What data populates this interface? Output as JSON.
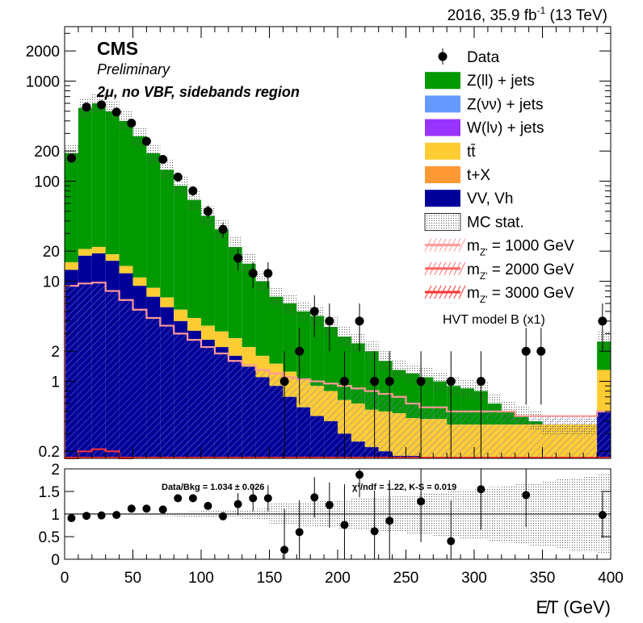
{
  "header": {
    "year": "2016, 35.9 fb",
    "lumi_exp": "-1",
    "energy": "(13 TeV)"
  },
  "labels": {
    "experiment": "CMS",
    "status": "Preliminary",
    "region": "2μ, no VBF, sidebands region",
    "model": "HVT model B (x1)",
    "ratio_stats": "Data/Bkg = 1.034 ± 0.026",
    "ratio_chi2": "χ²/ndf = 1.22,   K-S = 0.019",
    "xlabel": "E̸T (GeV)"
  },
  "legend": [
    {
      "label": "Data",
      "style": "marker"
    },
    {
      "label": "Z(ll) + jets",
      "style": "fill",
      "color": "#009900"
    },
    {
      "label": "Z(νν) + jets",
      "style": "fill",
      "color": "#6699ff"
    },
    {
      "label": "W(lν) + jets",
      "style": "fill",
      "color": "#9933ff"
    },
    {
      "label": "tt̄",
      "style": "fill",
      "color": "#ffcc33"
    },
    {
      "label": "t+X",
      "style": "fill",
      "color": "#ff9933"
    },
    {
      "label": "VV, Vh",
      "style": "fill",
      "color": "#000099"
    },
    {
      "label": "MC stat.",
      "style": "hatch"
    },
    {
      "label": "m",
      "sub": "Z'",
      "rest": " = 1000 GeV",
      "style": "line",
      "color": "#ff9999"
    },
    {
      "label": "m",
      "sub": "Z'",
      "rest": " = 2000 GeV",
      "style": "line",
      "color": "#ff6666"
    },
    {
      "label": "m",
      "sub": "Z'",
      "rest": " = 3000 GeV",
      "style": "line",
      "color": "#ff3333"
    }
  ],
  "chart_data": {
    "type": "bar",
    "x_axis": {
      "label": "E̸T (GeV)",
      "range": [
        0,
        400
      ],
      "ticks": [
        "0",
        "50",
        "100",
        "150",
        "200",
        "250",
        "300",
        "350",
        "400"
      ]
    },
    "y_axis": {
      "scale": "log",
      "range": [
        0.17,
        3500
      ],
      "ticks": [
        "0.2",
        "1",
        "2",
        "10",
        "20",
        "100",
        "200",
        "1000",
        "2000"
      ]
    },
    "ratio_axis": {
      "range": [
        0,
        2
      ],
      "ticks": [
        "0",
        "0.5",
        "1",
        "1.5",
        "2"
      ],
      "reference": 1
    },
    "bin_width": 10,
    "data_points": [
      {
        "x": 5,
        "y": 170,
        "ratio": 0.91
      },
      {
        "x": 16,
        "y": 550,
        "ratio": 0.96
      },
      {
        "x": 27,
        "y": 580,
        "ratio": 0.97
      },
      {
        "x": 38,
        "y": 490,
        "ratio": 0.98
      },
      {
        "x": 49,
        "y": 380,
        "ratio": 1.12
      },
      {
        "x": 60,
        "y": 250,
        "ratio": 1.12
      },
      {
        "x": 72,
        "y": 165,
        "ratio": 1.1
      },
      {
        "x": 83,
        "y": 110,
        "ratio": 1.35
      },
      {
        "x": 94,
        "y": 80,
        "ratio": 1.35
      },
      {
        "x": 105,
        "y": 50,
        "ratio": 1.18
      },
      {
        "x": 116,
        "y": 33,
        "ratio": 0.95
      },
      {
        "x": 127,
        "y": 17,
        "ratio": 1.22
      },
      {
        "x": 138,
        "y": 12,
        "ratio": 1.35
      },
      {
        "x": 149,
        "y": 12,
        "ratio": 1.35
      },
      {
        "x": 161,
        "y": 1,
        "ratio": 0.21
      },
      {
        "x": 172,
        "y": 2,
        "ratio": 0.6
      },
      {
        "x": 183,
        "y": 5,
        "ratio": 1.37
      },
      {
        "x": 194,
        "y": 4,
        "ratio": 1.2
      },
      {
        "x": 205,
        "y": 1,
        "ratio": 0.76
      },
      {
        "x": 216,
        "y": 4,
        "ratio": 1.87
      },
      {
        "x": 227,
        "y": 1,
        "ratio": 0.62
      },
      {
        "x": 238,
        "y": 1,
        "ratio": 0.85
      },
      {
        "x": 261,
        "y": 1,
        "ratio": 1.28
      },
      {
        "x": 283,
        "y": 1,
        "ratio": 0.4
      },
      {
        "x": 305,
        "y": 1,
        "ratio": 1.55
      },
      {
        "x": 338,
        "y": 2,
        "ratio": 1.42
      },
      {
        "x": 349,
        "y": 2,
        "ratio": null
      },
      {
        "x": 394,
        "y": 4,
        "ratio": 0.98
      }
    ],
    "background_stack": {
      "bin_edges": [
        0,
        10,
        20,
        30,
        40,
        50,
        60,
        70,
        80,
        90,
        100,
        110,
        120,
        130,
        140,
        150,
        160,
        170,
        180,
        190,
        200,
        210,
        220,
        230,
        240,
        250,
        260,
        270,
        280,
        290,
        300,
        310,
        320,
        330,
        340,
        350,
        360,
        370,
        380,
        390,
        400
      ],
      "vv_vh": [
        13,
        18,
        19,
        16,
        12,
        9,
        7,
        5.5,
        4,
        3.2,
        2.6,
        2.2,
        1.8,
        1.4,
        1.1,
        0.9,
        0.7,
        0.55,
        0.45,
        0.4,
        0.3,
        0.25,
        0.22,
        0.2,
        0.18,
        0.18,
        0.17,
        0.17,
        0.17,
        0.17,
        0.17,
        0.17,
        0.17,
        0.17,
        0.17,
        0.17,
        0.17,
        0.17,
        0.17,
        0.5
      ],
      "ttbar": [
        2.5,
        3,
        3,
        2.6,
        2.2,
        1.9,
        1.6,
        1.4,
        1.2,
        1.1,
        1.0,
        0.95,
        0.9,
        0.8,
        0.7,
        0.6,
        0.55,
        0.5,
        0.45,
        0.4,
        0.35,
        0.35,
        0.3,
        0.3,
        0.3,
        0.25,
        0.25,
        0.25,
        0.2,
        0.2,
        0.2,
        0.2,
        0.2,
        0.2,
        0.2,
        0.2,
        0.2,
        0.2,
        0.2,
        0.8
      ],
      "zll_total": [
        190,
        540,
        600,
        500,
        400,
        280,
        190,
        130,
        90,
        65,
        45,
        33,
        22,
        15,
        10,
        7,
        6,
        5,
        4.5,
        3.5,
        2.8,
        2.4,
        2.0,
        1.6,
        1.3,
        1.2,
        1.1,
        1.0,
        0.9,
        0.85,
        0.8,
        0.6,
        0.5,
        0.45,
        0.4,
        0.35,
        0.3,
        0.25,
        0.2,
        2.5
      ]
    },
    "signal_1000": [
      0.17,
      0.17,
      0.17,
      0.17,
      0.17,
      0.17,
      0.17,
      0.17,
      0.17,
      0.17,
      0.17,
      0.17,
      0.17,
      0.17,
      0.17,
      0.17,
      0.17,
      0.17,
      0.17,
      0.17,
      0.17,
      0.17,
      0.17,
      0.17,
      0.17,
      0.17,
      0.17,
      0.17,
      0.17,
      0.17,
      0.17,
      0.17,
      0.17,
      0.17,
      0.17,
      0.17,
      0.17,
      0.17,
      0.17,
      0.17
    ],
    "signal_shape": [
      9,
      9.5,
      9.7,
      8,
      6.5,
      5.2,
      4.3,
      3.6,
      3.0,
      2.6,
      2.2,
      1.9,
      1.6,
      1.45,
      1.3,
      1.2,
      1.1,
      1.05,
      1.0,
      0.95,
      0.9,
      0.85,
      0.8,
      0.75,
      0.7,
      0.6,
      0.55,
      0.55,
      0.5,
      0.5,
      0.5,
      0.5,
      0.5,
      0.45,
      0.45,
      0.45,
      0.45,
      0.45,
      0.45,
      0.5
    ],
    "signal_low": [
      0.17,
      0.2,
      0.21,
      0.2,
      0.17
    ]
  }
}
